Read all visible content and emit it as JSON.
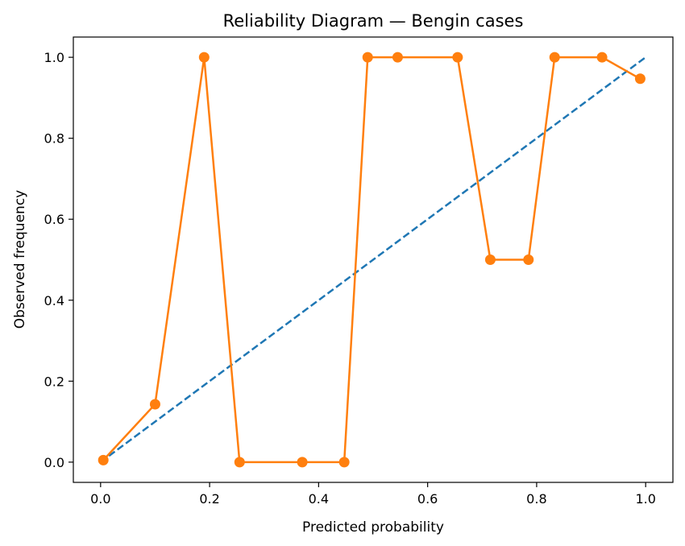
{
  "chart_data": {
    "type": "line",
    "title": "Reliability Diagram — Bengin cases",
    "xlabel": "Predicted probability",
    "ylabel": "Observed frequency",
    "xlim": [
      -0.05,
      1.05
    ],
    "ylim": [
      -0.05,
      1.05
    ],
    "xticks": [
      0.0,
      0.2,
      0.4,
      0.6,
      0.8,
      1.0
    ],
    "yticks": [
      0.0,
      0.2,
      0.4,
      0.6,
      0.8,
      1.0
    ],
    "xtick_labels": [
      "0.0",
      "0.2",
      "0.4",
      "0.6",
      "0.8",
      "1.0"
    ],
    "ytick_labels": [
      "0.0",
      "0.2",
      "0.4",
      "0.6",
      "0.8",
      "1.0"
    ],
    "grid": false,
    "series": [
      {
        "style": "dashed",
        "color": "#1f77b4",
        "x": [
          0.0,
          1.0
        ],
        "y": [
          0.0,
          1.0
        ]
      },
      {
        "style": "line-with-markers",
        "color": "#ff7f0e",
        "x": [
          0.005,
          0.1,
          0.19,
          0.255,
          0.37,
          0.447,
          0.49,
          0.545,
          0.655,
          0.715,
          0.785,
          0.833,
          0.92,
          0.99
        ],
        "y": [
          0.005,
          0.143,
          1.0,
          0.0,
          0.0,
          0.0,
          1.0,
          1.0,
          1.0,
          0.5,
          0.5,
          1.0,
          1.0,
          0.947
        ]
      }
    ]
  }
}
